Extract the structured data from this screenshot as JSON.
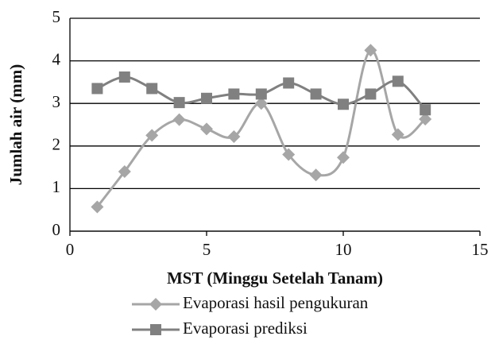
{
  "chart_data": {
    "type": "line",
    "smooth": true,
    "x_label": "MST (Minggu Setelah Tanam)",
    "y_label": "Jumlah air (mm)",
    "x": [
      1,
      2,
      3,
      4,
      5,
      6,
      7,
      8,
      9,
      10,
      11,
      12,
      13
    ],
    "series": [
      {
        "name": "Evaporasi hasil pengukuran",
        "color": "#a6a6a6",
        "marker": "diamond",
        "values": [
          0.57,
          1.4,
          2.25,
          2.62,
          2.4,
          2.22,
          3.0,
          1.8,
          1.32,
          1.73,
          4.25,
          2.27,
          2.63
        ]
      },
      {
        "name": "Evaporasi prediksi",
        "color": "#808080",
        "marker": "square",
        "values": [
          3.35,
          3.62,
          3.35,
          3.02,
          3.12,
          3.22,
          3.22,
          3.48,
          3.22,
          2.98,
          3.22,
          3.52,
          2.85
        ]
      }
    ],
    "xlim": [
      0,
      15
    ],
    "xticks": [
      0,
      5,
      10,
      15
    ],
    "ylim": [
      0,
      5
    ],
    "yticks": [
      0,
      1,
      2,
      3,
      4,
      5
    ],
    "grid": true,
    "legend": "bottom"
  }
}
